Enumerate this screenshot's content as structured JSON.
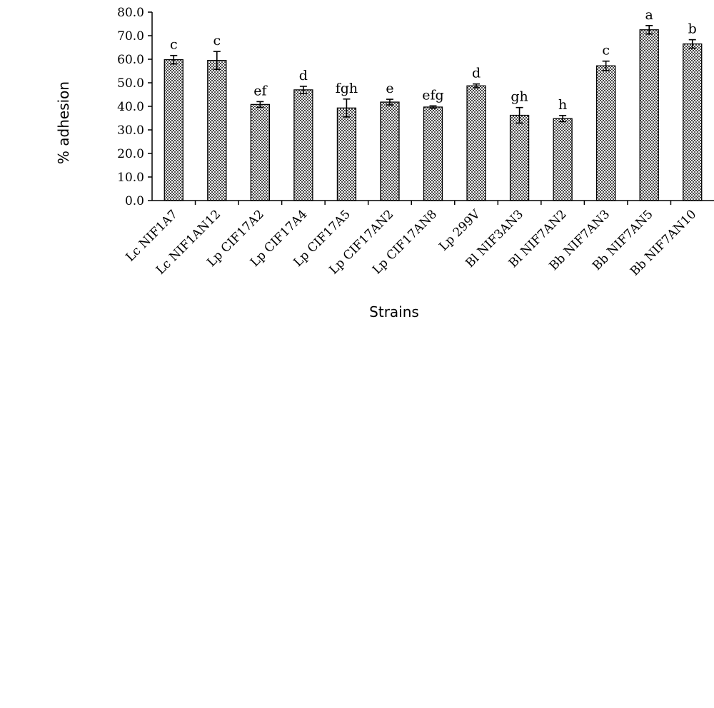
{
  "chart_data": {
    "type": "bar",
    "title": "",
    "xlabel": "Strains",
    "ylabel": "% adhesion",
    "ylim": [
      0,
      80
    ],
    "yticks": [
      "0.0",
      "10.0",
      "20.0",
      "30.0",
      "40.0",
      "50.0",
      "60.0",
      "70.0",
      "80.0"
    ],
    "grid": false,
    "legend": "none",
    "bar_fill": "#9a9a9a",
    "categories": [
      "Lc NIF1A7",
      "Lc NIF1AN12",
      "Lp CIF17A2",
      "Lp CIF17A4",
      "Lp CIF17A5",
      "Lp CIF17AN2",
      "Lp CIF17AN8",
      "Lp 299V",
      "Bl NIF3AN3",
      "Bl NIF7AN2",
      "Bb NIF7AN3",
      "Bb NIF7AN5",
      "Bb NIF7AN10"
    ],
    "values": [
      59.8,
      59.5,
      40.8,
      47.0,
      39.3,
      41.8,
      39.7,
      48.7,
      36.2,
      34.8,
      57.2,
      72.5,
      66.5
    ],
    "errors": [
      1.8,
      3.8,
      1.2,
      1.5,
      3.8,
      1.2,
      0.5,
      0.8,
      3.3,
      1.3,
      2.0,
      1.8,
      1.8
    ],
    "significance": [
      "c",
      "c",
      "ef",
      "d",
      "fgh",
      "e",
      "efg",
      "d",
      "gh",
      "h",
      "c",
      "a",
      "b"
    ]
  }
}
